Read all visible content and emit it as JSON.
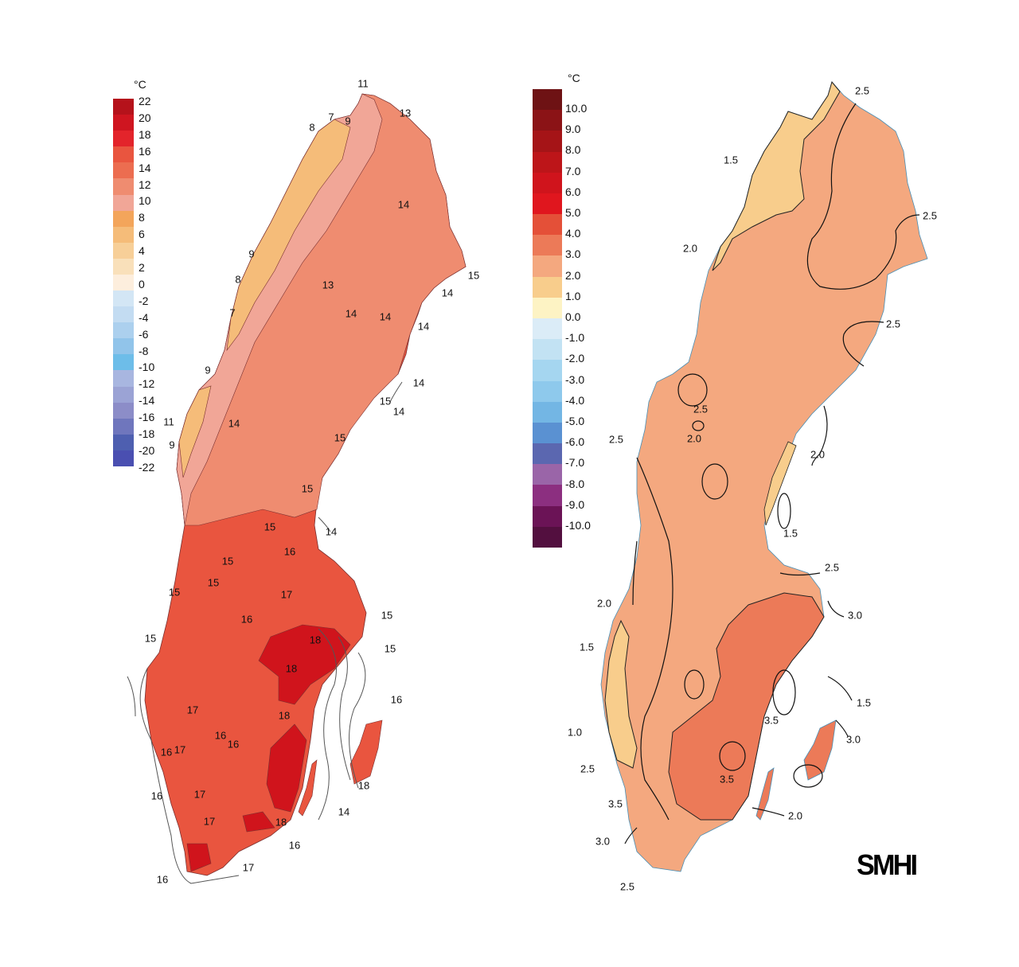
{
  "left_map": {
    "legend": {
      "unit": "°C",
      "ticks": [
        "22",
        "20",
        "18",
        "16",
        "14",
        "12",
        "10",
        "8",
        "6",
        "4",
        "2",
        "0",
        "-2",
        "-4",
        "-6",
        "-8",
        "-10",
        "-12",
        "-14",
        "-16",
        "-18",
        "-20",
        "-22"
      ],
      "colors": [
        "#b5121b",
        "#cf1520",
        "#e3242b",
        "#e9553f",
        "#ec6d50",
        "#ef8c70",
        "#f1a697",
        "#f3a55b",
        "#f5bc79",
        "#f7cf98",
        "#f9e0ba",
        "#fdeedd",
        "#d3e6f5",
        "#c3dcf2",
        "#acd0ee",
        "#91c4ea",
        "#6dbde9",
        "#a8b6e0",
        "#9ba3d5",
        "#8c8dc8",
        "#6f76bd",
        "#4e5fb0",
        "#4a4fb1"
      ]
    },
    "contour_labels": [
      "11",
      "13",
      "7",
      "8",
      "9",
      "14",
      "15",
      "9",
      "8",
      "13",
      "7",
      "14",
      "14",
      "14",
      "14",
      "9",
      "14",
      "15",
      "14",
      "11",
      "14",
      "9",
      "15",
      "15",
      "14",
      "15",
      "16",
      "15",
      "17",
      "15",
      "16",
      "15",
      "18",
      "15",
      "18",
      "15",
      "15",
      "17",
      "16",
      "18",
      "16",
      "16",
      "16",
      "17",
      "17",
      "14",
      "16",
      "17",
      "18",
      "16",
      "16",
      "17",
      "18"
    ]
  },
  "right_map": {
    "legend": {
      "unit": "°C",
      "ticks": [
        "10.0",
        "9.0",
        "8.0",
        "7.0",
        "6.0",
        "5.0",
        "4.0",
        "3.0",
        "2.0",
        "1.0",
        "0.0",
        "-1.0",
        "-2.0",
        "-3.0",
        "-4.0",
        "-5.0",
        "-6.0",
        "-7.0",
        "-8.0",
        "-9.0",
        "-10.0"
      ],
      "colors": [
        "#6e1214",
        "#8b1316",
        "#a51417",
        "#bd1519",
        "#d0141c",
        "#e0161e",
        "#e45038",
        "#ec7a58",
        "#f4a87f",
        "#f8cd8c",
        "#fdf3c4",
        "#dbecf7",
        "#c2e2f3",
        "#a5d6f0",
        "#8ec9ec",
        "#73b6e4",
        "#5a91d2",
        "#5b67b0",
        "#9a65a8",
        "#8c2f80",
        "#6b1356",
        "#530f3f"
      ]
    },
    "contour_labels": [
      "2.5",
      "1.5",
      "2.5",
      "2.0",
      "2.5",
      "2.5",
      "2.0",
      "2.5",
      "2.0",
      "1.5",
      "2.5",
      "2.0",
      "3.0",
      "1.5",
      "1.0",
      "1.5",
      "3.5",
      "3.0",
      "3.5",
      "3.5",
      "2.0",
      "3.0",
      "2.5",
      "2.5"
    ]
  },
  "logo": "SMHI"
}
